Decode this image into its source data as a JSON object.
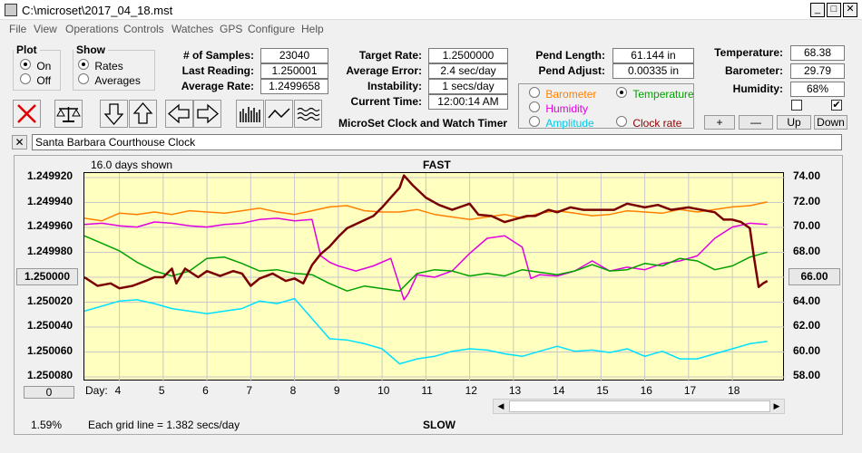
{
  "window": {
    "title": "C:\\microset\\2017_04_18.mst"
  },
  "menu": [
    "File",
    "View",
    "Operations",
    "Controls",
    "Watches",
    "GPS",
    "Configure",
    "Help"
  ],
  "plot_group": {
    "title": "Plot",
    "on_label": "On",
    "off_label": "Off",
    "selected": "On"
  },
  "show_group": {
    "title": "Show",
    "rates_label": "Rates",
    "averages_label": "Averages",
    "selected": "Rates"
  },
  "stats": {
    "samples_label": "# of Samples:",
    "samples": "23040",
    "last_label": "Last Reading:",
    "last": "1.250001",
    "avg_label": "Average Rate:",
    "avg": "1.2499658"
  },
  "rates": {
    "target_label": "Target Rate:",
    "target": "1.2500000",
    "error_label": "Average Error:",
    "error": "2.4 sec/day",
    "instab_label": "Instability:",
    "instab": "1 secs/day",
    "time_label": "Current Time:",
    "time": "12:00:14 AM"
  },
  "app_caption": "MicroSet Clock and Watch Timer",
  "pend": {
    "length_label": "Pend Length:",
    "length": "61.144 in",
    "adjust_label": "Pend Adjust:",
    "adjust": "0.00335 in"
  },
  "env": {
    "temp_label": "Temperature:",
    "temp": "68.38",
    "baro_label": "Barometer:",
    "baro": "29.79",
    "hum_label": "Humidity:",
    "hum": "68%"
  },
  "series_select": {
    "barometer": "Barometer",
    "temperature": "Temperature",
    "humidity": "Humidity",
    "amplitude": "Amplitude",
    "clockrate": "Clock rate",
    "selected": "Temperature"
  },
  "scale_buttons": {
    "plus": "+",
    "minus": "—",
    "up": "Up",
    "down": "Down"
  },
  "clock_name": "Santa Barbara Courthouse Clock",
  "close_x": "✕",
  "days_shown": "16.0 days shown",
  "fast_label": "FAST",
  "slow_label": "SLOW",
  "day_label": "Day:",
  "center_value": "1.250000",
  "right_center_value": "66.00",
  "bottom_box": "0",
  "percent": "1.59%",
  "grid_note": "Each grid line = 1.382 secs/day",
  "colors": {
    "clock": "#7a0000",
    "temperature": "#00a000",
    "barometer": "#ff8000",
    "humidity": "#e000e0",
    "amplitude": "#00e0ff",
    "plot_bg": "#ffffc0"
  },
  "chart_data": {
    "type": "line",
    "left_axis_ticks": [
      "1.249920",
      "1.249940",
      "1.249960",
      "1.249980",
      "1.250000",
      "1.250020",
      "1.250040",
      "1.250060",
      "1.250080"
    ],
    "right_axis_ticks": [
      "74.00",
      "72.00",
      "70.00",
      "68.00",
      "66.00",
      "64.00",
      "62.00",
      "60.00",
      "58.00"
    ],
    "x_ticks": [
      4,
      5,
      6,
      7,
      8,
      9,
      10,
      11,
      12,
      13,
      14,
      15,
      16,
      17,
      18
    ],
    "xlim": [
      3.2,
      19.2
    ],
    "ylim_left": [
      1.24991,
      1.25008
    ],
    "ylim_right": [
      58,
      74.6
    ],
    "series": [
      {
        "name": "Clock rate",
        "color": "#7a0000",
        "axis": "left",
        "x": [
          3.2,
          3.5,
          3.8,
          4.0,
          4.3,
          4.6,
          4.8,
          5.0,
          5.2,
          5.3,
          5.5,
          5.8,
          6.0,
          6.3,
          6.6,
          6.8,
          7.0,
          7.2,
          7.5,
          7.8,
          8.0,
          8.2,
          8.4,
          8.6,
          8.8,
          9.0,
          9.2,
          9.5,
          9.8,
          10.0,
          10.2,
          10.4,
          10.5,
          10.7,
          11.0,
          11.3,
          11.6,
          12.0,
          12.2,
          12.5,
          12.8,
          13.0,
          13.3,
          13.5,
          13.8,
          14.0,
          14.3,
          14.6,
          15.0,
          15.3,
          15.6,
          16.0,
          16.3,
          16.6,
          17.0,
          17.3,
          17.6,
          17.8,
          18.0,
          18.2,
          18.4,
          18.5,
          18.6,
          18.7,
          18.8
        ],
        "y": [
          1.249995,
          1.250002,
          1.25,
          1.250004,
          1.250002,
          1.249998,
          1.249995,
          1.249995,
          1.249988,
          1.25,
          1.249988,
          1.249995,
          1.24999,
          1.249994,
          1.24999,
          1.249992,
          1.250002,
          1.249996,
          1.249992,
          1.249998,
          1.249996,
          1.25,
          1.249985,
          1.249976,
          1.24997,
          1.249962,
          1.249955,
          1.24995,
          1.249945,
          1.249938,
          1.24993,
          1.249922,
          1.249912,
          1.24992,
          1.24993,
          1.249936,
          1.24994,
          1.249935,
          1.249944,
          1.249945,
          1.24995,
          1.249948,
          1.249945,
          1.249945,
          1.24994,
          1.249942,
          1.249938,
          1.24994,
          1.24994,
          1.24994,
          1.249935,
          1.249938,
          1.249936,
          1.24994,
          1.249938,
          1.24994,
          1.249942,
          1.249948,
          1.249948,
          1.24995,
          1.249955,
          1.24998,
          1.250003,
          1.25,
          1.249998
        ]
      },
      {
        "name": "Temperature",
        "color": "#00a000",
        "axis": "right",
        "x": [
          3.2,
          3.6,
          4.0,
          4.4,
          4.8,
          5.2,
          5.6,
          6.0,
          6.4,
          6.8,
          7.2,
          7.6,
          8.0,
          8.4,
          8.8,
          9.2,
          9.6,
          10.0,
          10.4,
          10.8,
          11.2,
          11.6,
          12.0,
          12.4,
          12.8,
          13.2,
          13.6,
          14.0,
          14.4,
          14.8,
          15.2,
          15.6,
          16.0,
          16.4,
          16.8,
          17.2,
          17.6,
          18.0,
          18.4,
          18.8
        ],
        "y": [
          69.6,
          69.0,
          68.4,
          67.5,
          66.8,
          66.4,
          66.8,
          67.8,
          67.9,
          67.4,
          66.8,
          66.9,
          66.6,
          66.5,
          65.8,
          65.2,
          65.6,
          65.4,
          65.2,
          66.6,
          66.9,
          66.8,
          66.4,
          66.6,
          66.4,
          66.9,
          66.7,
          66.5,
          66.8,
          67.3,
          66.8,
          66.9,
          67.4,
          67.2,
          67.8,
          67.6,
          66.9,
          67.2,
          67.9,
          68.3
        ]
      },
      {
        "name": "Barometer",
        "color": "#ff8000",
        "axis": "right",
        "x": [
          3.2,
          3.6,
          4.0,
          4.4,
          4.8,
          5.2,
          5.6,
          6.0,
          6.4,
          6.8,
          7.2,
          7.6,
          8.0,
          8.4,
          8.8,
          9.2,
          9.6,
          10.0,
          10.4,
          10.8,
          11.2,
          11.6,
          12.0,
          12.4,
          12.8,
          13.2,
          13.6,
          14.0,
          14.4,
          14.8,
          15.2,
          15.6,
          16.0,
          16.4,
          16.8,
          17.2,
          17.6,
          18.0,
          18.4,
          18.8
        ],
        "y": [
          71.0,
          70.8,
          71.4,
          71.3,
          71.5,
          71.3,
          71.6,
          71.5,
          71.4,
          71.6,
          71.8,
          71.5,
          71.3,
          71.6,
          71.9,
          72.0,
          71.6,
          71.5,
          71.5,
          71.7,
          71.3,
          71.1,
          70.9,
          71.1,
          71.3,
          71.0,
          71.4,
          71.6,
          71.4,
          71.2,
          71.3,
          71.6,
          71.5,
          71.4,
          71.7,
          71.5,
          71.7,
          71.9,
          72.0,
          72.3
        ]
      },
      {
        "name": "Humidity",
        "color": "#e000e0",
        "axis": "right",
        "x": [
          3.2,
          3.6,
          4.0,
          4.4,
          4.8,
          5.2,
          5.6,
          6.0,
          6.4,
          6.8,
          7.2,
          7.6,
          8.0,
          8.4,
          8.6,
          8.8,
          9.0,
          9.4,
          9.8,
          10.2,
          10.5,
          10.6,
          10.8,
          11.2,
          11.6,
          12.0,
          12.4,
          12.8,
          13.2,
          13.4,
          13.6,
          14.0,
          14.4,
          14.8,
          15.2,
          15.6,
          16.0,
          16.4,
          16.8,
          17.2,
          17.6,
          18.0,
          18.4,
          18.8
        ],
        "y": [
          70.5,
          70.6,
          70.4,
          70.3,
          70.7,
          70.6,
          70.4,
          70.3,
          70.5,
          70.6,
          70.9,
          71.0,
          70.8,
          70.9,
          68.0,
          67.5,
          67.2,
          66.8,
          67.2,
          67.8,
          64.5,
          65.0,
          66.5,
          66.3,
          66.8,
          68.2,
          69.4,
          69.6,
          68.7,
          66.2,
          66.5,
          66.4,
          66.8,
          67.6,
          66.8,
          67.1,
          66.9,
          67.4,
          67.6,
          68.0,
          69.4,
          70.3,
          70.6,
          70.5
        ]
      },
      {
        "name": "Amplitude",
        "color": "#00e0ff",
        "axis": "right",
        "x": [
          3.2,
          3.6,
          4.0,
          4.4,
          4.8,
          5.2,
          5.6,
          6.0,
          6.4,
          6.8,
          7.2,
          7.6,
          8.0,
          8.4,
          8.8,
          9.2,
          9.6,
          10.0,
          10.4,
          10.8,
          11.2,
          11.6,
          12.0,
          12.4,
          12.8,
          13.2,
          13.6,
          14.0,
          14.4,
          14.8,
          15.2,
          15.6,
          16.0,
          16.4,
          16.8,
          17.2,
          17.6,
          18.0,
          18.4,
          18.8
        ],
        "y": [
          63.6,
          64.0,
          64.4,
          64.5,
          64.2,
          63.8,
          63.6,
          63.4,
          63.6,
          63.8,
          64.4,
          64.2,
          64.6,
          63.0,
          61.4,
          61.3,
          61.0,
          60.6,
          59.4,
          59.8,
          60.0,
          60.4,
          60.6,
          60.5,
          60.2,
          60.0,
          60.4,
          60.8,
          60.4,
          60.5,
          60.3,
          60.6,
          60.0,
          60.4,
          59.8,
          59.8,
          60.2,
          60.6,
          61.0,
          61.2
        ]
      }
    ]
  }
}
